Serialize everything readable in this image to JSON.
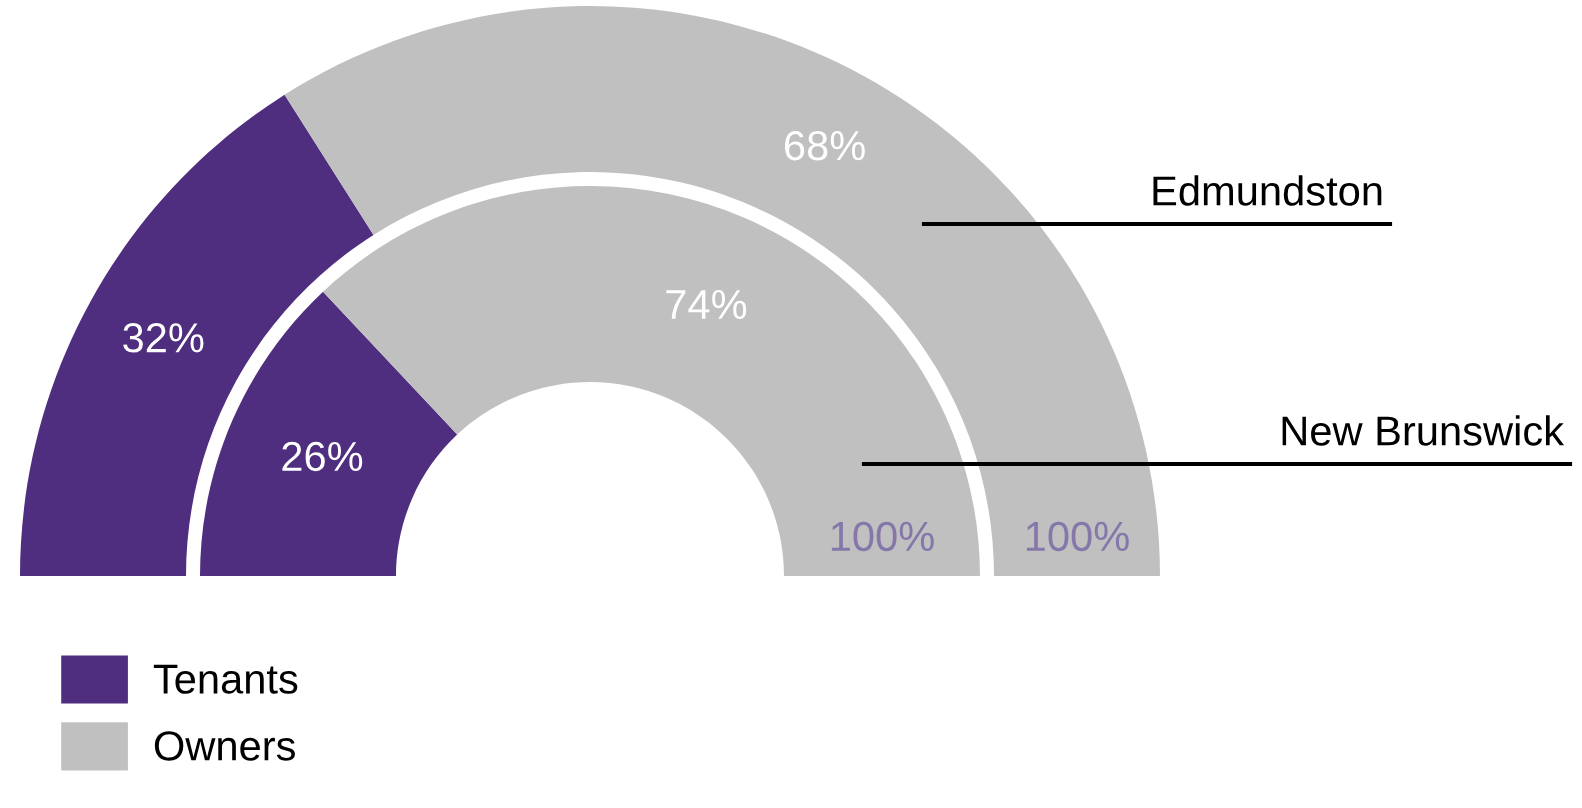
{
  "chart_data": {
    "type": "donut",
    "categories": [
      "Tenants",
      "Owners"
    ],
    "colors": [
      "#4f2d7f",
      "#c0c0c0"
    ],
    "series": [
      {
        "name": "Edmundston",
        "values": [
          32,
          68
        ],
        "value_labels": [
          "32%",
          "68%"
        ]
      },
      {
        "name": "New Brunswick",
        "values": [
          26,
          74
        ],
        "value_labels": [
          "26%",
          "74%"
        ]
      }
    ],
    "annotations": [
      "100%",
      "100%"
    ],
    "legend": "bottom left"
  }
}
